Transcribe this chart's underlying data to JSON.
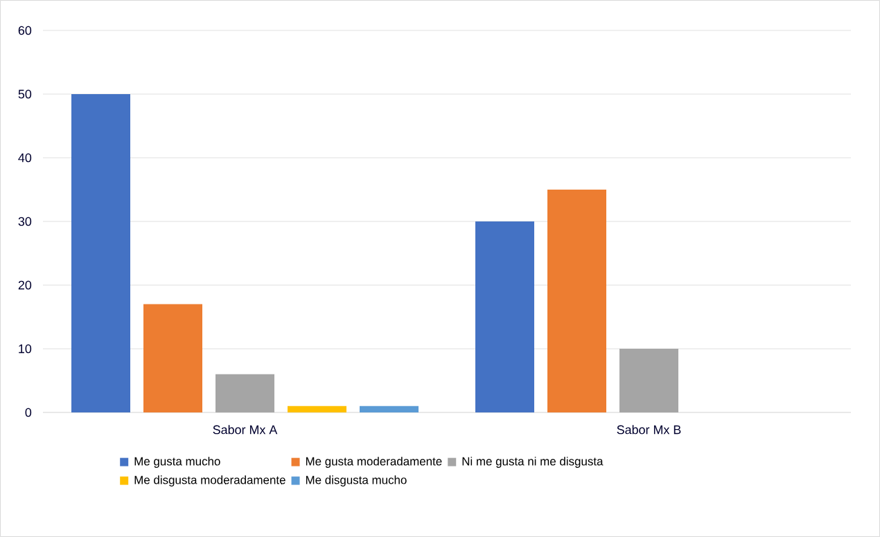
{
  "chart_data": {
    "type": "bar",
    "categories": [
      "Sabor Mx A",
      "Sabor Mx B"
    ],
    "series": [
      {
        "name": "Me gusta mucho",
        "color": "#4472c4",
        "values": [
          50,
          30
        ]
      },
      {
        "name": "Me gusta moderadamente",
        "color": "#ed7d31",
        "values": [
          17,
          35
        ]
      },
      {
        "name": "Ni me gusta ni me disgusta",
        "color": "#a5a5a5",
        "values": [
          6,
          10
        ]
      },
      {
        "name": "Me disgusta moderadamente",
        "color": "#ffc000",
        "values": [
          1,
          0
        ]
      },
      {
        "name": "Me disgusta mucho",
        "color": "#5b9bd5",
        "values": [
          1,
          0
        ]
      }
    ],
    "ylim": [
      0,
      60
    ],
    "yticks": [
      0,
      10,
      20,
      30,
      40,
      50,
      60
    ],
    "grid": "y",
    "legend": "bottom"
  }
}
